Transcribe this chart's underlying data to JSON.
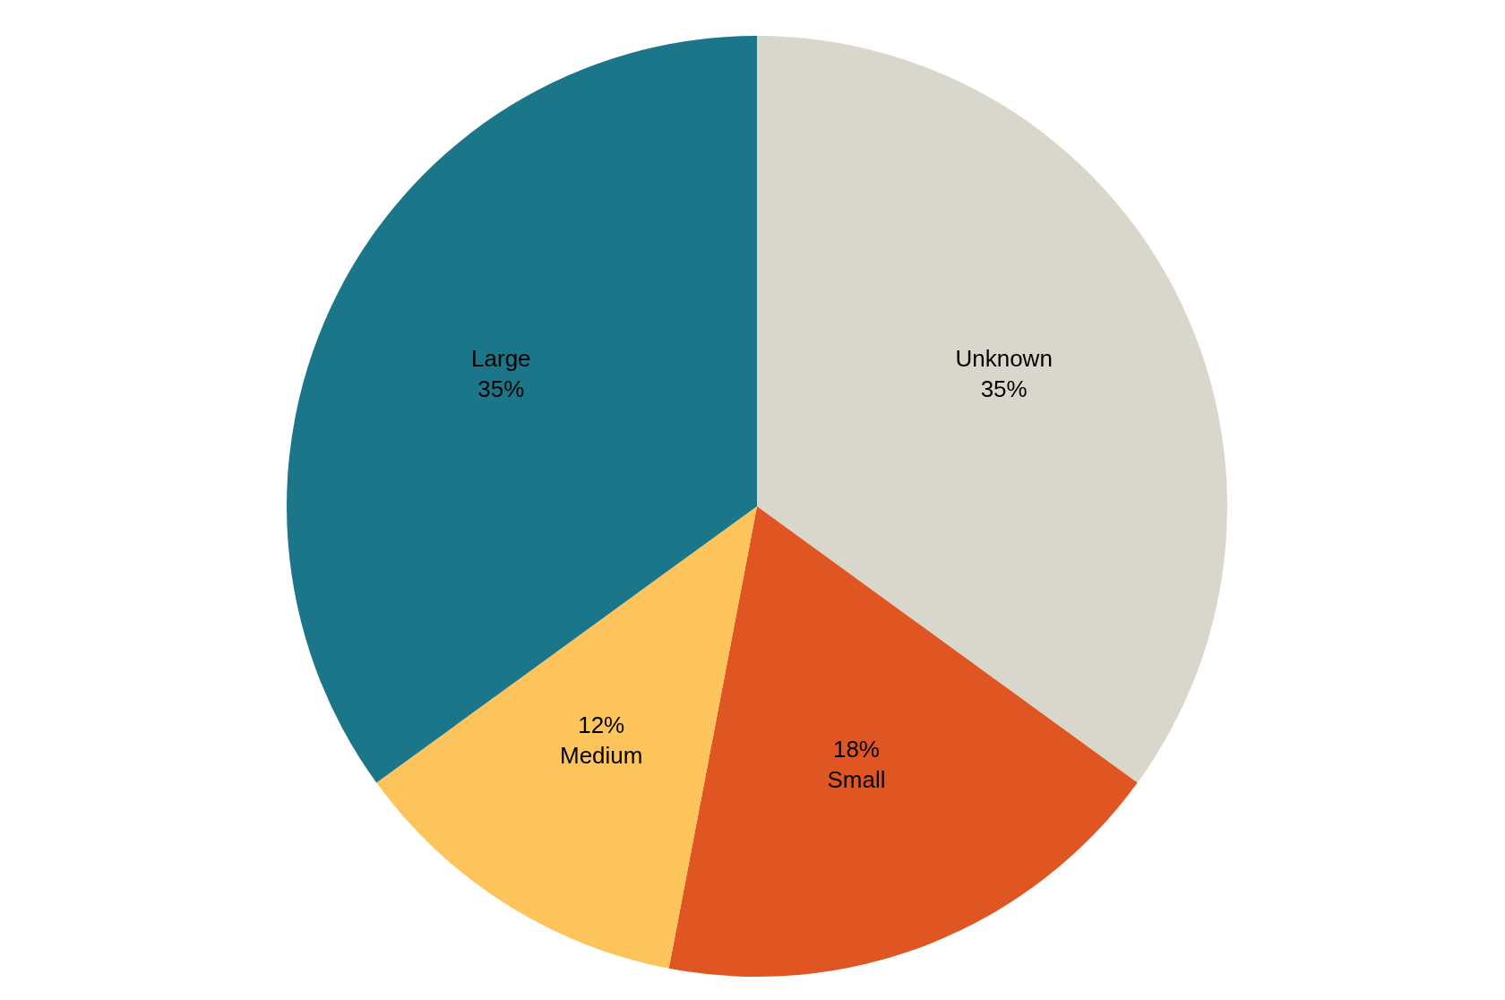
{
  "chart_data": {
    "type": "pie",
    "categories": [
      "Unknown",
      "Small",
      "Medium",
      "Large"
    ],
    "values": [
      35,
      18,
      12,
      35
    ],
    "value_labels": [
      "35%",
      "18%",
      "12%",
      "35%"
    ],
    "colors": [
      "#d9d7cb",
      "#e05622",
      "#fdc45c",
      "#1b7689"
    ],
    "legend": false
  }
}
